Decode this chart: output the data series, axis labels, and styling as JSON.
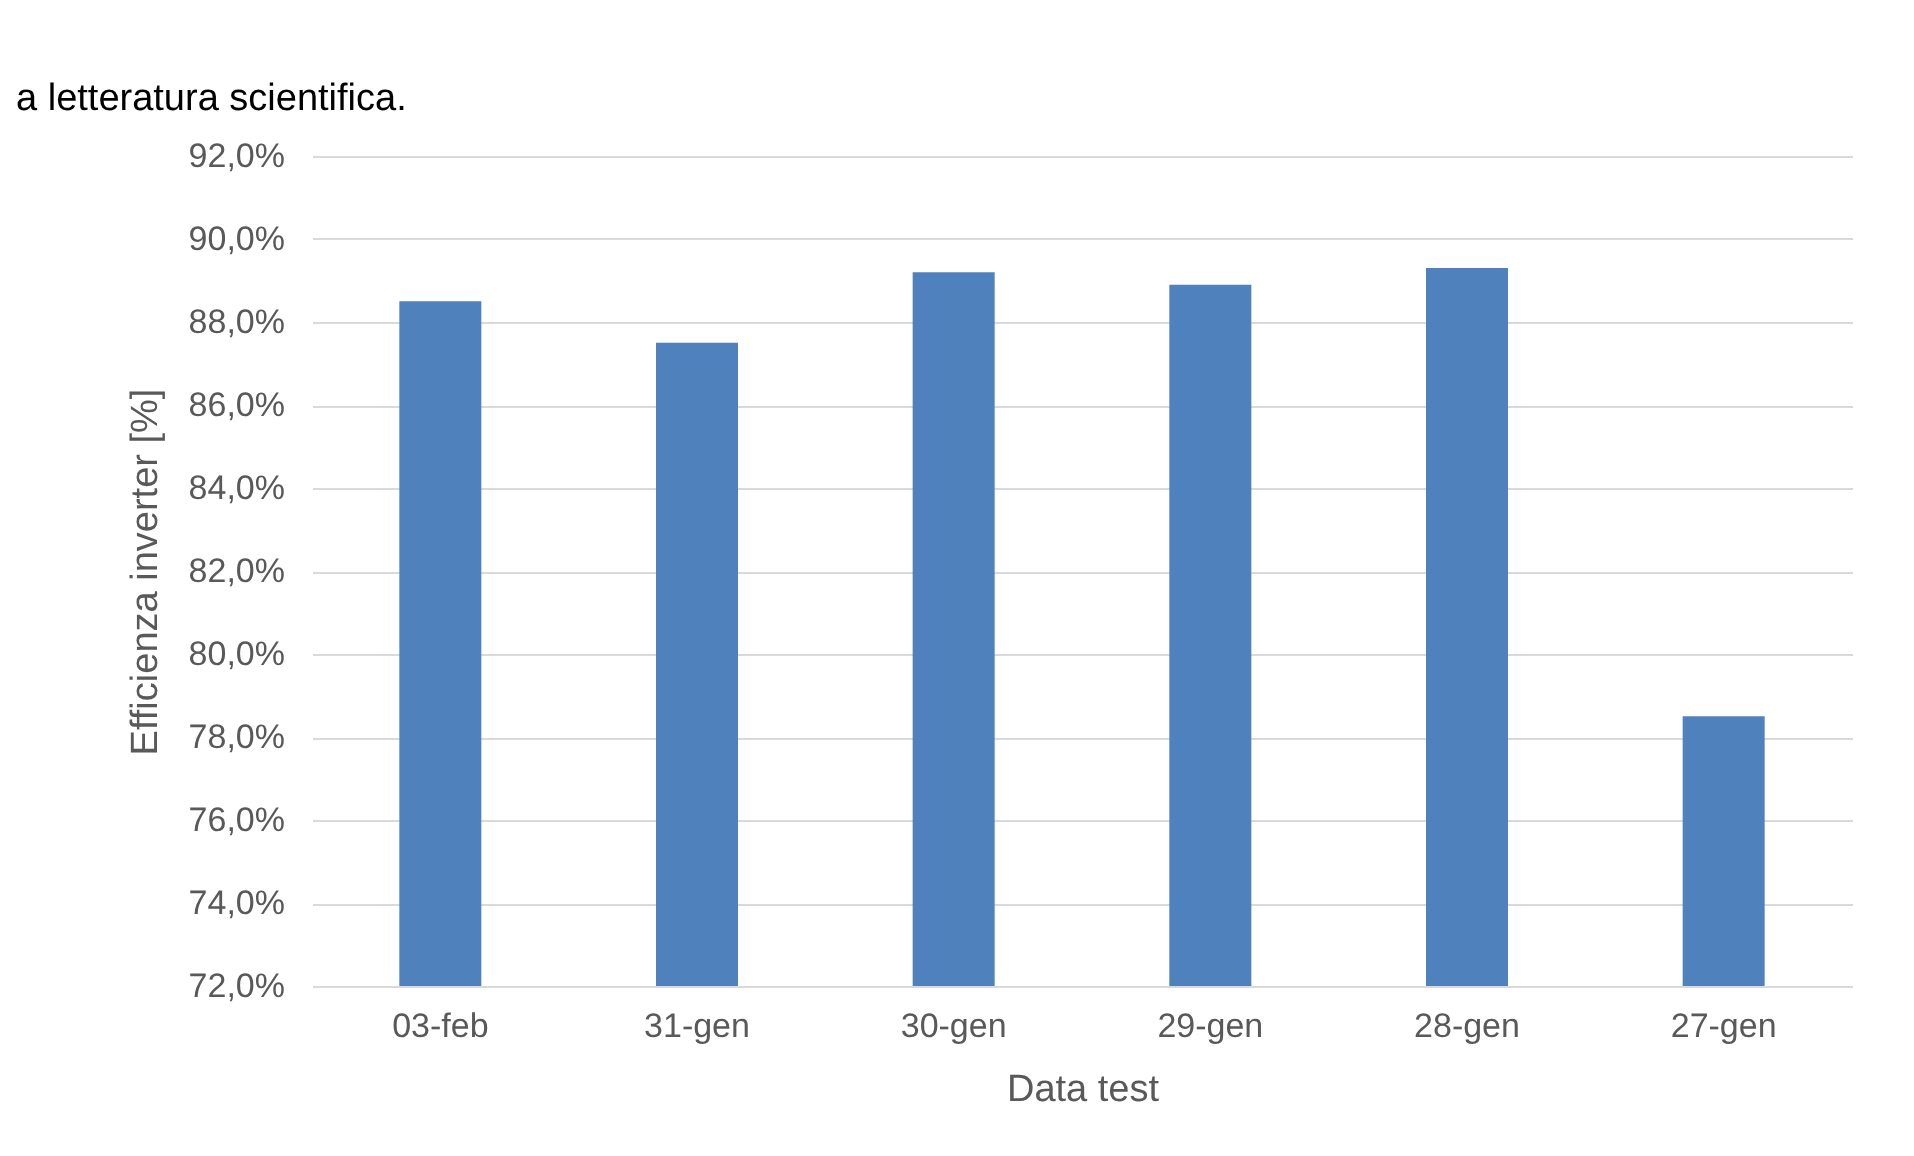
{
  "chart_data": {
    "type": "bar",
    "xlabel": "Data test",
    "ylabel": "Efficienza inverter [%]",
    "annotations": [
      "a letteratura scientifica."
    ],
    "categories": [
      "03-feb",
      "31-gen",
      "30-gen",
      "29-gen",
      "28-gen",
      "27-gen"
    ],
    "values": [
      88.5,
      87.5,
      89.2,
      88.9,
      89.3,
      78.5
    ],
    "color": "#4f81bd",
    "ylim": [
      72,
      92
    ],
    "yticks": [
      {
        "value": 72,
        "label": "72,0%"
      },
      {
        "value": 74,
        "label": "74,0%"
      },
      {
        "value": 76,
        "label": "76,0%"
      },
      {
        "value": 78,
        "label": "78,0%"
      },
      {
        "value": 80,
        "label": "80,0%"
      },
      {
        "value": 82,
        "label": "82,0%"
      },
      {
        "value": 84,
        "label": "84,0%"
      },
      {
        "value": 86,
        "label": "86,0%"
      },
      {
        "value": 88,
        "label": "88,0%"
      },
      {
        "value": 90,
        "label": "90,0%"
      },
      {
        "value": 92,
        "label": "92,0%"
      }
    ],
    "grid": "y"
  }
}
